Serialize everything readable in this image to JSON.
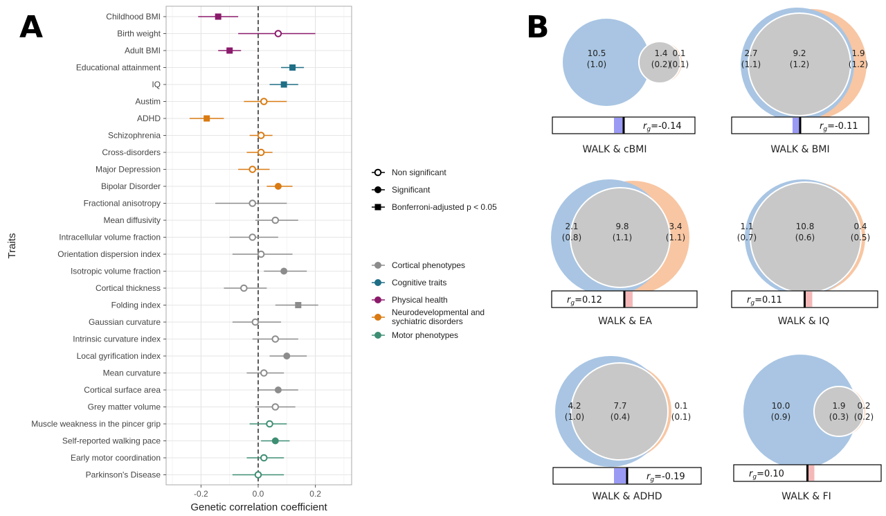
{
  "panels": {
    "a_label": "A",
    "b_label": "B"
  },
  "colors": {
    "physical": "#8B1A6B",
    "cognitive": "#1E6F85",
    "neuro": "#D97A12",
    "cortical": "#8C8C8C",
    "motor": "#3E8E74",
    "venn_left": "#A9C5E3",
    "venn_right": "#F8C6A2",
    "venn_overlap": "#C8C8C8",
    "bar_neg": "#9A9AF5",
    "bar_pos": "#F5B8B8"
  },
  "chart_data": [
    {
      "type": "scatter",
      "subtype": "forest-plot",
      "title": "",
      "xlabel": "Genetic correlation coefficient",
      "ylabel": "Traits",
      "xlim": [
        -0.3,
        0.3
      ],
      "x_ticks": [
        -0.2,
        0.0,
        0.2
      ],
      "x_tick_labels": [
        "-0.2",
        "0.0",
        "0.2"
      ],
      "grid": true,
      "reference_line": 0,
      "legend_position": "right",
      "legend_significance": [
        {
          "label": "Non significant",
          "marker": "open-circle"
        },
        {
          "label": "Significant",
          "marker": "filled-circle"
        },
        {
          "label": "Bonferroni-adjusted p < 0.05",
          "marker": "filled-square"
        }
      ],
      "legend_categories": [
        {
          "label": "Cortical phenotypes",
          "group": "cortical"
        },
        {
          "label": "Cognitive traits",
          "group": "cognitive"
        },
        {
          "label": "Physical health",
          "group": "physical"
        },
        {
          "label": "Neurodevelopmental and sychiatric disorders",
          "group": "neuro"
        },
        {
          "label": "Motor phenotypes",
          "group": "motor"
        }
      ],
      "traits": [
        {
          "label": "Childhood BMI",
          "value": -0.14,
          "ci": [
            -0.21,
            -0.07
          ],
          "marker": "square",
          "group": "physical"
        },
        {
          "label": "Birth weight",
          "value": 0.07,
          "ci": [
            -0.07,
            0.2
          ],
          "marker": "open",
          "group": "physical"
        },
        {
          "label": "Adult BMI",
          "value": -0.1,
          "ci": [
            -0.14,
            -0.06
          ],
          "marker": "square",
          "group": "physical"
        },
        {
          "label": "Educational attainment",
          "value": 0.12,
          "ci": [
            0.08,
            0.16
          ],
          "marker": "square",
          "group": "cognitive"
        },
        {
          "label": "IQ",
          "value": 0.09,
          "ci": [
            0.04,
            0.14
          ],
          "marker": "square",
          "group": "cognitive"
        },
        {
          "label": "Austim",
          "value": 0.02,
          "ci": [
            -0.05,
            0.1
          ],
          "marker": "open",
          "group": "neuro"
        },
        {
          "label": "ADHD",
          "value": -0.18,
          "ci": [
            -0.24,
            -0.12
          ],
          "marker": "square",
          "group": "neuro"
        },
        {
          "label": "Schizophrenia",
          "value": 0.01,
          "ci": [
            -0.03,
            0.05
          ],
          "marker": "open",
          "group": "neuro"
        },
        {
          "label": "Cross-disorders",
          "value": 0.01,
          "ci": [
            -0.04,
            0.05
          ],
          "marker": "open",
          "group": "neuro"
        },
        {
          "label": "Major Depression",
          "value": -0.02,
          "ci": [
            -0.07,
            0.04
          ],
          "marker": "open",
          "group": "neuro"
        },
        {
          "label": "Bipolar Disorder",
          "value": 0.07,
          "ci": [
            0.03,
            0.12
          ],
          "marker": "filled",
          "group": "neuro"
        },
        {
          "label": "Fractional anisotropy",
          "value": -0.02,
          "ci": [
            -0.15,
            0.1
          ],
          "marker": "open",
          "group": "cortical"
        },
        {
          "label": "Mean diffusivity",
          "value": 0.06,
          "ci": [
            -0.01,
            0.14
          ],
          "marker": "open",
          "group": "cortical"
        },
        {
          "label": "Intracellular volume fraction",
          "value": -0.02,
          "ci": [
            -0.1,
            0.07
          ],
          "marker": "open",
          "group": "cortical"
        },
        {
          "label": "Orientation dispersion index",
          "value": 0.01,
          "ci": [
            -0.09,
            0.12
          ],
          "marker": "open",
          "group": "cortical"
        },
        {
          "label": "Isotropic volume fraction",
          "value": 0.09,
          "ci": [
            0.02,
            0.17
          ],
          "marker": "filled",
          "group": "cortical"
        },
        {
          "label": "Cortical thickness",
          "value": -0.05,
          "ci": [
            -0.12,
            0.03
          ],
          "marker": "open",
          "group": "cortical"
        },
        {
          "label": "Folding index",
          "value": 0.14,
          "ci": [
            0.06,
            0.21
          ],
          "marker": "square",
          "group": "cortical"
        },
        {
          "label": "Gaussian curvature",
          "value": -0.01,
          "ci": [
            -0.09,
            0.08
          ],
          "marker": "open",
          "group": "cortical"
        },
        {
          "label": "Intrinsic curvature index",
          "value": 0.06,
          "ci": [
            -0.02,
            0.14
          ],
          "marker": "open",
          "group": "cortical"
        },
        {
          "label": "Local gyrification index",
          "value": 0.1,
          "ci": [
            0.04,
            0.17
          ],
          "marker": "filled",
          "group": "cortical"
        },
        {
          "label": "Mean curvature",
          "value": 0.02,
          "ci": [
            -0.04,
            0.09
          ],
          "marker": "open",
          "group": "cortical"
        },
        {
          "label": "Cortical surface area",
          "value": 0.07,
          "ci": [
            0.0,
            0.14
          ],
          "marker": "filled",
          "group": "cortical"
        },
        {
          "label": "Grey matter volume",
          "value": 0.06,
          "ci": [
            -0.01,
            0.13
          ],
          "marker": "open",
          "group": "cortical"
        },
        {
          "label": "Muscle weakness in the pincer grip",
          "value": 0.04,
          "ci": [
            -0.03,
            0.1
          ],
          "marker": "open",
          "group": "motor"
        },
        {
          "label": "Self-reported walking pace",
          "value": 0.06,
          "ci": [
            0.01,
            0.11
          ],
          "marker": "filled",
          "group": "motor"
        },
        {
          "label": "Early motor coordination",
          "value": 0.02,
          "ci": [
            -0.04,
            0.09
          ],
          "marker": "open",
          "group": "motor"
        },
        {
          "label": "Parkinson's Disease",
          "value": 0.0,
          "ci": [
            -0.09,
            0.09
          ],
          "marker": "open",
          "group": "motor"
        }
      ]
    },
    {
      "type": "venn",
      "panels": [
        {
          "title": "WALK & cBMI",
          "left": "10.5",
          "left_se": "(1.0)",
          "overlap": "1.4",
          "overlap_se": "(0.2)",
          "right": "0.1",
          "right_se": "(0.1)",
          "rg_value": -0.14,
          "rg_prefix": "r",
          "rg_sub": "g",
          "rg_text": "=-0.14"
        },
        {
          "title": "WALK & BMI",
          "left": "2.7",
          "left_se": "(1.1)",
          "overlap": "9.2",
          "overlap_se": "(1.2)",
          "right": "1.9",
          "right_se": "(1.2)",
          "rg_value": -0.11,
          "rg_prefix": "r",
          "rg_sub": "g",
          "rg_text": "=-0.11"
        },
        {
          "title": "WALK & EA",
          "left": "2.1",
          "left_se": "(0.8)",
          "overlap": "9.8",
          "overlap_se": "(1.1)",
          "right": "3.4",
          "right_se": "(1.1)",
          "rg_value": 0.12,
          "rg_prefix": "r",
          "rg_sub": "g",
          "rg_text": "=0.12"
        },
        {
          "title": "WALK & IQ",
          "left": "1.1",
          "left_se": "(0.7)",
          "overlap": "10.8",
          "overlap_se": "(0.6)",
          "right": "0.4",
          "right_se": "(0.5)",
          "rg_value": 0.11,
          "rg_prefix": "r",
          "rg_sub": "g",
          "rg_text": "=0.11"
        },
        {
          "title": "WALK & ADHD",
          "left": "4.2",
          "left_se": "(1.0)",
          "overlap": "7.7",
          "overlap_se": "(0.4)",
          "right": "0.1",
          "right_se": "(0.1)",
          "rg_value": -0.19,
          "rg_prefix": "r",
          "rg_sub": "g",
          "rg_text": "=-0.19"
        },
        {
          "title": "WALK & FI",
          "left": "10.0",
          "left_se": "(0.9)",
          "overlap": "1.9",
          "overlap_se": "(0.3)",
          "right": "0.2",
          "right_se": "(0.2)",
          "rg_value": 0.1,
          "rg_prefix": "r",
          "rg_sub": "g",
          "rg_text": "=0.10"
        }
      ]
    }
  ]
}
